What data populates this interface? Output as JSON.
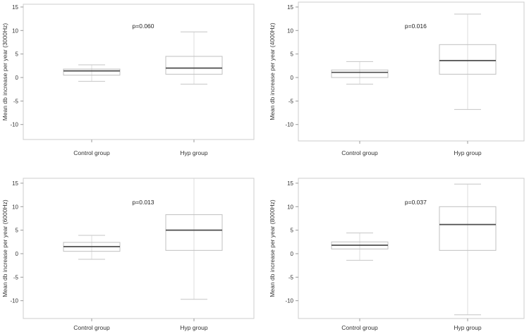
{
  "figure": {
    "title": "",
    "background_color": "#ffffff",
    "frame_color": "#cccccc",
    "box_stroke_color": "#c0c0c0",
    "whisker_line_color": "#dcdcdc",
    "whisker_cap_color": "#c6c6c6",
    "median_color": "#4d4d4d",
    "tick_mark_color": "#9a9a9a",
    "text_color": "#333333",
    "annotation_color": "#222222"
  },
  "chart_data": [
    {
      "type": "boxplot",
      "ylabel": "Mean db increase per year (3000Hz)",
      "xlabel": "",
      "annotation": "p=0.060",
      "categories": [
        "Control group",
        "Hyp group"
      ],
      "yticks": [
        -10,
        -5,
        0,
        5,
        10,
        15
      ],
      "ylim": [
        -13.5,
        15.6
      ],
      "grid": false,
      "legend": "none",
      "series": [
        {
          "name": "Control group",
          "whisker_low": -0.8,
          "q1": 0.5,
          "median": 1.4,
          "q3": 1.8,
          "whisker_high": 2.7
        },
        {
          "name": "Hyp group",
          "whisker_low": -1.4,
          "q1": 0.7,
          "median": 2.0,
          "q3": 4.5,
          "whisker_high": 9.7
        }
      ]
    },
    {
      "type": "boxplot",
      "ylabel": "Mean db increase per year (4000Hz)",
      "xlabel": "",
      "annotation": "p=0.016",
      "categories": [
        "Control group",
        "Hyp group"
      ],
      "yticks": [
        -10,
        -5,
        0,
        5,
        10,
        15
      ],
      "ylim": [
        -13.5,
        16.0
      ],
      "grid": false,
      "legend": "none",
      "series": [
        {
          "name": "Control group",
          "whisker_low": -1.4,
          "q1": 0.0,
          "median": 1.1,
          "q3": 1.6,
          "whisker_high": 3.4
        },
        {
          "name": "Hyp group",
          "whisker_low": -6.8,
          "q1": 0.7,
          "median": 3.6,
          "q3": 7.0,
          "whisker_high": 13.5
        }
      ]
    },
    {
      "type": "boxplot",
      "ylabel": "Mean db increase per year (6000Hz)",
      "xlabel": "",
      "annotation": "p=0.013",
      "categories": [
        "Control group",
        "Hyp group"
      ],
      "yticks": [
        -10,
        -5,
        0,
        5,
        10,
        15
      ],
      "ylim": [
        -13.8,
        16.0
      ],
      "grid": false,
      "legend": "none",
      "series": [
        {
          "name": "Control group",
          "whisker_low": -1.2,
          "q1": 0.5,
          "median": 1.5,
          "q3": 2.4,
          "whisker_high": 3.9
        },
        {
          "name": "Hyp group",
          "whisker_low": -9.7,
          "q1": 0.7,
          "median": 5.0,
          "q3": 8.3,
          "whisker_high": 16.0,
          "whisker_high_clipped": true
        }
      ]
    },
    {
      "type": "boxplot",
      "ylabel": "Mean db increase per year (8000Hz)",
      "xlabel": "",
      "annotation": "p=0.037",
      "categories": [
        "Control group",
        "Hyp group"
      ],
      "yticks": [
        -10,
        -5,
        0,
        5,
        10,
        15
      ],
      "ylim": [
        -13.8,
        16.0
      ],
      "grid": false,
      "legend": "none",
      "series": [
        {
          "name": "Control group",
          "whisker_low": -1.4,
          "q1": 1.0,
          "median": 1.8,
          "q3": 2.5,
          "whisker_high": 4.4
        },
        {
          "name": "Hyp group",
          "whisker_low": -13.0,
          "q1": 0.7,
          "median": 6.2,
          "q3": 10.0,
          "whisker_high": 14.8
        }
      ]
    }
  ]
}
